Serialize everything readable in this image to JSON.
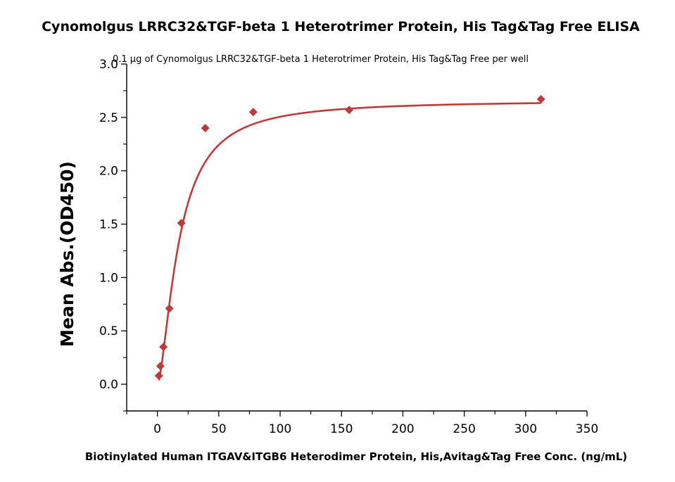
{
  "chart_data": {
    "type": "scatter",
    "title": "Cynomolgus LRRC32&TGF-beta 1 Heterotrimer Protein, His Tag&Tag Free ELISA",
    "subtitle": "0.1 μg of Cynomolgus LRRC32&TGF-beta 1 Heterotrimer Protein, His Tag&Tag Free per well",
    "xlabel": "Biotinylated Human ITGAV&ITGB6 Heterodimer Protein, His,Avitag&Tag Free Conc. (ng/mL)",
    "ylabel": "Mean Abs.(OD450)",
    "xlim": [
      -25,
      350
    ],
    "ylim": [
      -0.25,
      3.0
    ],
    "x_ticks": [
      0,
      50,
      100,
      150,
      200,
      250,
      300,
      350
    ],
    "x_tick_labels": [
      "0",
      "50",
      "100",
      "150",
      "200",
      "250",
      "300",
      "350"
    ],
    "y_ticks": [
      0.0,
      0.5,
      1.0,
      1.5,
      2.0,
      2.5,
      3.0
    ],
    "y_tick_labels": [
      "0.0",
      "0.5",
      "1.0",
      "1.5",
      "2.0",
      "2.5",
      "3.0"
    ],
    "grid": false,
    "marker_color": "#c0393b",
    "curve_color": "#c0393b",
    "series": [
      {
        "x": [
          1.22,
          2.44,
          4.88,
          9.77,
          19.53,
          39.06,
          78.13,
          156.25,
          312.5
        ],
        "y": [
          0.08,
          0.17,
          0.35,
          0.71,
          1.51,
          2.4,
          2.55,
          2.57,
          2.67
        ]
      }
    ]
  }
}
